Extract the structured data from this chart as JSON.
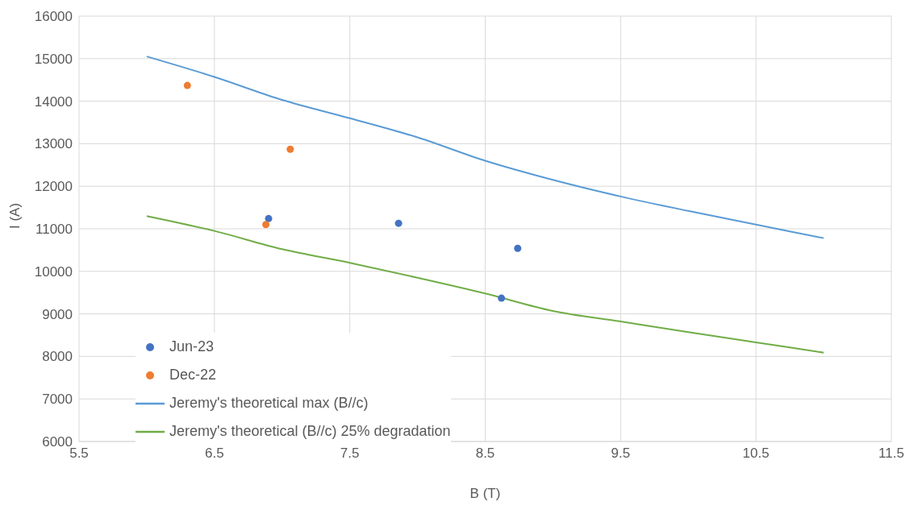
{
  "chart_data": {
    "type": "scatter",
    "xlabel": "B (T)",
    "ylabel": "I (A)",
    "xlim": [
      5.5,
      11.5
    ],
    "xticks": [
      5.5,
      6.5,
      7.5,
      8.5,
      9.5,
      10.5,
      11.5
    ],
    "ylim": [
      6000,
      16000
    ],
    "yticks": [
      6000,
      7000,
      8000,
      9000,
      10000,
      11000,
      12000,
      13000,
      14000,
      15000,
      16000
    ],
    "grid": true,
    "legend": "bottom left",
    "marker": "circle",
    "series": [
      {
        "name": "Jun-23",
        "color": "#4472c4",
        "x": [
          6.9,
          7.86,
          8.74,
          8.62
        ],
        "values": [
          11240,
          11130,
          10540,
          9370
        ]
      },
      {
        "name": "Dec-22",
        "color": "#ed7d31",
        "x": [
          6.3,
          7.06,
          6.88
        ],
        "values": [
          14370,
          12870,
          11100
        ]
      },
      {
        "name": "Jeremy's theoretical max (B//c)",
        "type": "line",
        "color": "#5b9bd5",
        "marker": "none",
        "x": [
          6,
          6.5,
          7,
          7.5,
          8,
          8.5,
          9,
          9.5,
          10,
          10.5,
          11
        ],
        "values": [
          15050,
          14570,
          14030,
          13600,
          13150,
          12600,
          12150,
          11760,
          11420,
          11100,
          10780
        ]
      },
      {
        "name": "Jeremy's theoretical (B//c) 25% degradation",
        "type": "line",
        "color": "#70ad47",
        "marker": "none",
        "x": [
          6,
          6.5,
          7,
          7.5,
          8,
          8.5,
          9,
          9.5,
          10,
          10.5,
          11
        ],
        "values": [
          11300,
          10950,
          10520,
          10200,
          9850,
          9480,
          9070,
          8820,
          8570,
          8330,
          8090
        ]
      }
    ]
  }
}
